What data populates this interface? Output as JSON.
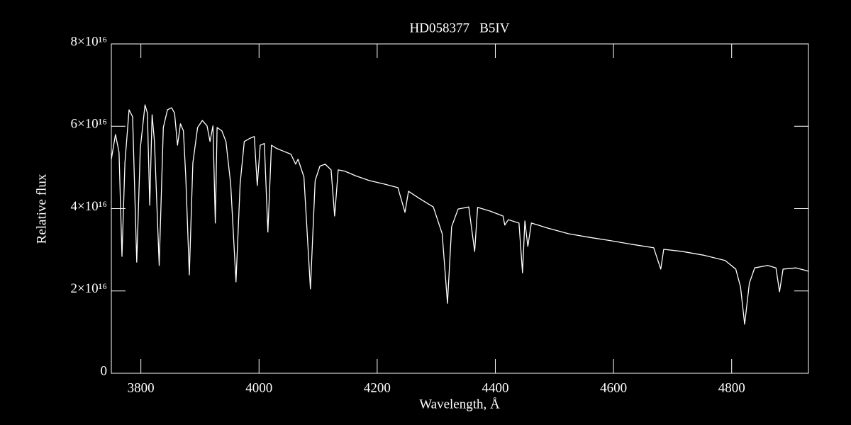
{
  "chart_data": {
    "type": "line",
    "title": "HD058377   B5IV",
    "x_label": "Wavelength, Å",
    "y_label": "Relative flux",
    "color": "#ffffff",
    "xlim": [
      3750,
      4930
    ],
    "ylim": [
      0,
      8e+16
    ],
    "xticks": [
      3800,
      4000,
      4200,
      4400,
      4600,
      4800
    ],
    "yticks": [
      0,
      {
        "value": 2e+16,
        "label": "2×10¹⁶"
      },
      {
        "value": 4e+16,
        "label": "4×10¹⁶"
      },
      {
        "value": 6e+16,
        "label": "6×10¹⁶"
      },
      {
        "value": 8e+16,
        "label": "8×10¹⁶"
      }
    ],
    "x": [
      3750,
      3757,
      3763,
      3768,
      3773,
      3780,
      3786,
      3793,
      3799,
      3807,
      3811,
      3815,
      3819,
      3823,
      3831,
      3838,
      3845,
      3852,
      3857,
      3862,
      3867,
      3872,
      3876,
      3882,
      3888,
      3896,
      3904,
      3912,
      3917,
      3922,
      3926,
      3929,
      3937,
      3944,
      3952,
      3961,
      3968,
      3975,
      3985,
      3992,
      3997,
      4002,
      4009,
      4015,
      4021,
      4030,
      4042,
      4054,
      4062,
      4066,
      4076,
      4087,
      4095,
      4103,
      4112,
      4122,
      4128,
      4134,
      4145,
      4163,
      4187,
      4211,
      4235,
      4247,
      4253,
      4271,
      4295,
      4310,
      4319,
      4326,
      4337,
      4355,
      4365,
      4370,
      4391,
      4413,
      4416,
      4422,
      4440,
      4446,
      4450,
      4455,
      4461,
      4488,
      4524,
      4560,
      4596,
      4632,
      4668,
      4680,
      4685,
      4716,
      4752,
      4789,
      4807,
      4815,
      4822,
      4830,
      4839,
      4861,
      4875,
      4881,
      4887,
      4909,
      4930
    ],
    "values": [
      5.2e+16,
      5.8e+16,
      5.37e+16,
      2.84e+16,
      5.11e+16,
      6.4e+16,
      6.23e+16,
      2.7e+16,
      5.46e+16,
      6.52e+16,
      6.32e+16,
      4.08e+16,
      6.28e+16,
      5.63e+16,
      2.62e+16,
      5.97e+16,
      6.4e+16,
      6.45e+16,
      6.32e+16,
      5.54e+16,
      6.06e+16,
      5.89e+16,
      4.77e+16,
      2.39e+16,
      5.11e+16,
      5.97e+16,
      6.14e+16,
      6.01e+16,
      5.63e+16,
      6.01e+16,
      3.65e+16,
      5.97e+16,
      5.89e+16,
      5.63e+16,
      4.6e+16,
      2.22e+16,
      4.6e+16,
      5.63e+16,
      5.71e+16,
      5.75e+16,
      4.56e+16,
      5.54e+16,
      5.58e+16,
      3.43e+16,
      5.54e+16,
      5.46e+16,
      5.39e+16,
      5.32e+16,
      5.08e+16,
      5.2e+16,
      4.77e+16,
      2.05e+16,
      4.68e+16,
      5.03e+16,
      5.08e+16,
      4.94e+16,
      3.82e+16,
      4.94e+16,
      4.91e+16,
      4.8e+16,
      4.68e+16,
      4.6e+16,
      4.51e+16,
      3.91e+16,
      4.42e+16,
      4.25e+16,
      4.04e+16,
      3.39e+16,
      1.7e+16,
      3.56e+16,
      3.99e+16,
      4.04e+16,
      2.96e+16,
      4.03e+16,
      3.94e+16,
      3.82e+16,
      3.6e+16,
      3.73e+16,
      3.65e+16,
      2.44e+16,
      3.7e+16,
      3.08e+16,
      3.65e+16,
      3.53e+16,
      3.39e+16,
      3.3e+16,
      3.22e+16,
      3.13e+16,
      3.05e+16,
      2.53e+16,
      3.01e+16,
      2.96e+16,
      2.87e+16,
      2.74e+16,
      2.53e+16,
      2.1e+16,
      1.19e+16,
      2.19e+16,
      2.56e+16,
      2.62e+16,
      2.56e+16,
      1.98e+16,
      2.53e+16,
      2.56e+16,
      2.48e+16
    ]
  }
}
